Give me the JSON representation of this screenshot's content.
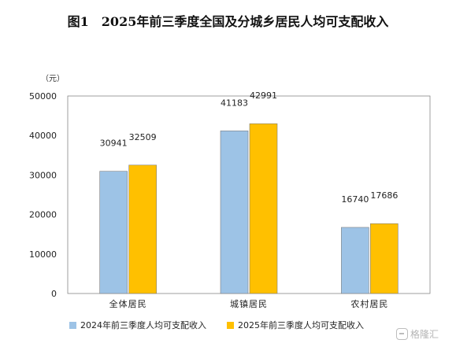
{
  "title": {
    "figure_no": "图1",
    "text": "2025年前三季度全国及分城乡居民人均可支配收入"
  },
  "watermark": {
    "logo": "格隆汇",
    "icon": "gelonghui-logo-icon"
  },
  "chart_data": {
    "type": "bar",
    "categories": [
      "全体居民",
      "城镇居民",
      "农村居民"
    ],
    "series": [
      {
        "name": "2024年前三季度人均可支配收入",
        "values": [
          30941,
          41183,
          16740
        ],
        "color": "#9DC3E6"
      },
      {
        "name": "2025年前三季度人均可支配收入",
        "values": [
          32509,
          42991,
          17686
        ],
        "color": "#FFC000"
      }
    ],
    "ylabel": "（元）",
    "ylim": [
      0,
      50000
    ],
    "yticks": [
      0,
      10000,
      20000,
      30000,
      40000,
      50000
    ],
    "grid": false,
    "legend": "bottom",
    "data_labels": true
  }
}
